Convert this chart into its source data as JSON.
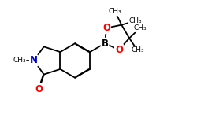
{
  "bg_color": "#ffffff",
  "bond_color": "#000000",
  "N_color": "#0000cd",
  "O_color": "#ff0000",
  "B_color": "#000000",
  "line_width": 1.3,
  "dbo": 0.006,
  "figsize": [
    2.5,
    1.5
  ],
  "dpi": 100,
  "xlim": [
    0,
    2.5
  ],
  "ylim": [
    0,
    1.5
  ]
}
